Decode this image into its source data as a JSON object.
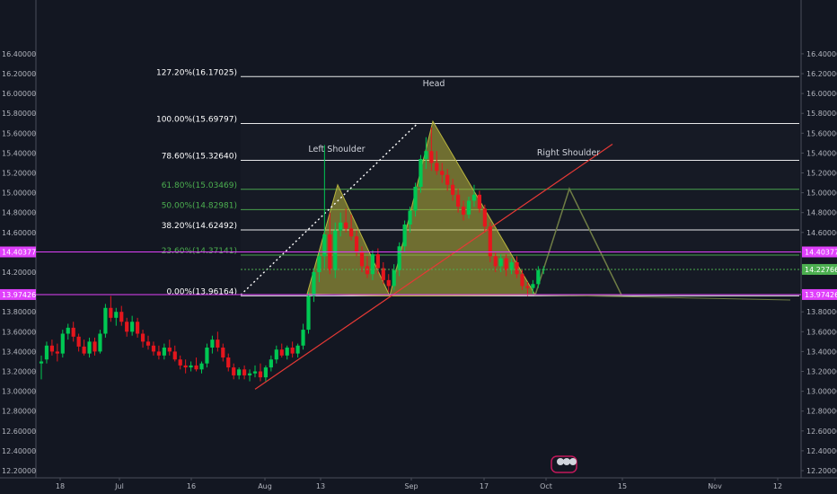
{
  "chart_data": {
    "type": "candlestick",
    "y_axis": {
      "ticks": [
        "16.40000",
        "16.20000",
        "16.00000",
        "15.80000",
        "15.60000",
        "15.40000",
        "15.20000",
        "15.00000",
        "14.80000",
        "14.60000",
        "14.40000",
        "14.20000",
        "14.00000",
        "13.80000",
        "13.60000",
        "13.40000",
        "13.20000",
        "13.00000",
        "12.80000",
        "12.60000",
        "12.40000",
        "12.20000"
      ],
      "range": [
        12.16,
        16.48
      ]
    },
    "x_axis": {
      "ticks": [
        "18",
        "Jul",
        "16",
        "Aug",
        "13",
        "Sep",
        "17",
        "Oct",
        "15",
        "Nov",
        "12"
      ]
    },
    "price_labels": [
      {
        "text": "14.40377",
        "value": 14.40377,
        "color": "#e040fb",
        "side": "both"
      },
      {
        "text": "14.22766",
        "value": 14.22766,
        "color": "#4caf50",
        "side": "right"
      },
      {
        "text": "13.97426",
        "value": 13.97426,
        "color": "#e040fb",
        "side": "both"
      }
    ],
    "fib_levels": [
      {
        "label": "127.20%(16.17025)",
        "value": 16.17025,
        "color": "#ffffff"
      },
      {
        "label": "100.00%(15.69797)",
        "value": 15.69797,
        "color": "#ffffff"
      },
      {
        "label": "78.60%(15.32640)",
        "value": 15.3264,
        "color": "#ffffff"
      },
      {
        "label": "61.80%(15.03469)",
        "value": 15.03469,
        "color": "#4caf50"
      },
      {
        "label": "50.00%(14.82981)",
        "value": 14.82981,
        "color": "#4caf50"
      },
      {
        "label": "38.20%(14.62492)",
        "value": 14.62492,
        "color": "#ffffff"
      },
      {
        "label": "23.60%(14.37141)",
        "value": 14.37141,
        "color": "#4caf50"
      },
      {
        "label": "0.00%(13.96164)",
        "value": 13.96164,
        "color": "#ffffff"
      }
    ],
    "annotations": [
      "Left Shoulder",
      "Head",
      "Right Shoulder"
    ],
    "candles": [
      [
        13.28,
        13.36,
        13.12,
        13.3
      ],
      [
        13.32,
        13.5,
        13.28,
        13.46
      ],
      [
        13.46,
        13.52,
        13.36,
        13.4
      ],
      [
        13.4,
        13.48,
        13.3,
        13.38
      ],
      [
        13.38,
        13.62,
        13.34,
        13.58
      ],
      [
        13.58,
        13.68,
        13.52,
        13.64
      ],
      [
        13.64,
        13.7,
        13.5,
        13.55
      ],
      [
        13.55,
        13.58,
        13.4,
        13.45
      ],
      [
        13.45,
        13.52,
        13.36,
        13.38
      ],
      [
        13.38,
        13.54,
        13.34,
        13.5
      ],
      [
        13.5,
        13.54,
        13.36,
        13.4
      ],
      [
        13.4,
        13.62,
        13.38,
        13.58
      ],
      [
        13.58,
        13.88,
        13.54,
        13.84
      ],
      [
        13.84,
        13.96,
        13.7,
        13.74
      ],
      [
        13.74,
        13.84,
        13.66,
        13.8
      ],
      [
        13.8,
        13.86,
        13.66,
        13.7
      ],
      [
        13.7,
        13.74,
        13.55,
        13.6
      ],
      [
        13.6,
        13.76,
        13.56,
        13.7
      ],
      [
        13.7,
        13.74,
        13.54,
        13.58
      ],
      [
        13.58,
        13.62,
        13.44,
        13.5
      ],
      [
        13.5,
        13.56,
        13.42,
        13.46
      ],
      [
        13.46,
        13.5,
        13.36,
        13.4
      ],
      [
        13.4,
        13.46,
        13.32,
        13.36
      ],
      [
        13.36,
        13.48,
        13.32,
        13.44
      ],
      [
        13.44,
        13.52,
        13.36,
        13.4
      ],
      [
        13.4,
        13.46,
        13.3,
        13.32
      ],
      [
        13.32,
        13.36,
        13.22,
        13.26
      ],
      [
        13.26,
        13.32,
        13.18,
        13.24
      ],
      [
        13.24,
        13.3,
        13.2,
        13.26
      ],
      [
        13.26,
        13.34,
        13.2,
        13.22
      ],
      [
        13.22,
        13.3,
        13.18,
        13.28
      ],
      [
        13.28,
        13.48,
        13.24,
        13.44
      ],
      [
        13.44,
        13.56,
        13.38,
        13.52
      ],
      [
        13.52,
        13.6,
        13.4,
        13.44
      ],
      [
        13.44,
        13.48,
        13.3,
        13.34
      ],
      [
        13.34,
        13.38,
        13.2,
        13.24
      ],
      [
        13.24,
        13.28,
        13.12,
        13.16
      ],
      [
        13.16,
        13.24,
        13.12,
        13.22
      ],
      [
        13.22,
        13.26,
        13.12,
        13.16
      ],
      [
        13.16,
        13.22,
        13.1,
        13.18
      ],
      [
        13.18,
        13.26,
        13.14,
        13.2
      ],
      [
        13.2,
        13.28,
        13.1,
        13.14
      ],
      [
        13.14,
        13.26,
        13.1,
        13.24
      ],
      [
        13.24,
        13.36,
        13.2,
        13.32
      ],
      [
        13.32,
        13.46,
        13.28,
        13.42
      ],
      [
        13.42,
        13.48,
        13.34,
        13.36
      ],
      [
        13.36,
        13.46,
        13.32,
        13.44
      ],
      [
        13.44,
        13.5,
        13.34,
        13.38
      ],
      [
        13.38,
        13.48,
        13.34,
        13.46
      ],
      [
        13.46,
        13.68,
        13.42,
        13.62
      ],
      [
        13.62,
        14.0,
        13.58,
        13.96
      ],
      [
        13.96,
        14.24,
        13.9,
        14.2
      ],
      [
        14.2,
        14.4,
        14.1,
        14.36
      ],
      [
        14.36,
        15.48,
        14.24,
        14.58
      ],
      [
        14.58,
        14.8,
        14.18,
        14.22
      ],
      [
        14.22,
        14.7,
        14.14,
        14.62
      ],
      [
        14.62,
        14.8,
        14.56,
        14.7
      ],
      [
        14.7,
        14.84,
        14.6,
        14.64
      ],
      [
        14.64,
        14.78,
        14.52,
        14.56
      ],
      [
        14.56,
        14.62,
        14.36,
        14.4
      ],
      [
        14.4,
        14.46,
        14.2,
        14.26
      ],
      [
        14.26,
        14.36,
        14.14,
        14.18
      ],
      [
        14.18,
        14.42,
        14.12,
        14.38
      ],
      [
        14.38,
        14.44,
        14.18,
        14.24
      ],
      [
        14.24,
        14.3,
        14.08,
        14.12
      ],
      [
        14.12,
        14.18,
        14.0,
        14.06
      ],
      [
        14.06,
        14.28,
        14.02,
        14.22
      ],
      [
        14.22,
        14.5,
        14.16,
        14.46
      ],
      [
        14.46,
        14.72,
        14.4,
        14.68
      ],
      [
        14.68,
        14.86,
        14.6,
        14.82
      ],
      [
        14.82,
        15.1,
        14.76,
        15.06
      ],
      [
        15.06,
        15.38,
        15.0,
        15.34
      ],
      [
        15.34,
        15.56,
        15.24,
        15.42
      ],
      [
        15.42,
        15.66,
        15.22,
        15.3
      ],
      [
        15.3,
        15.42,
        15.18,
        15.22
      ],
      [
        15.22,
        15.3,
        15.1,
        15.18
      ],
      [
        15.18,
        15.24,
        15.02,
        15.08
      ],
      [
        15.08,
        15.14,
        14.92,
        14.98
      ],
      [
        14.98,
        15.04,
        14.8,
        14.86
      ],
      [
        14.86,
        14.92,
        14.72,
        14.78
      ],
      [
        14.78,
        14.96,
        14.74,
        14.92
      ],
      [
        14.92,
        15.08,
        14.86,
        14.98
      ],
      [
        14.98,
        15.02,
        14.8,
        14.84
      ],
      [
        14.84,
        14.88,
        14.6,
        14.66
      ],
      [
        14.66,
        14.7,
        14.3,
        14.36
      ],
      [
        14.36,
        14.4,
        14.2,
        14.26
      ],
      [
        14.26,
        14.38,
        14.2,
        14.34
      ],
      [
        14.34,
        14.38,
        14.16,
        14.22
      ],
      [
        14.22,
        14.34,
        14.18,
        14.3
      ],
      [
        14.3,
        14.36,
        14.14,
        14.18
      ],
      [
        14.18,
        14.22,
        14.02,
        14.06
      ],
      [
        14.06,
        14.1,
        13.96,
        14.04
      ],
      [
        14.04,
        14.12,
        13.98,
        14.08
      ],
      [
        14.08,
        14.26,
        14.04,
        14.22
      ],
      [
        14.22,
        14.26,
        14.18,
        14.23
      ]
    ]
  }
}
